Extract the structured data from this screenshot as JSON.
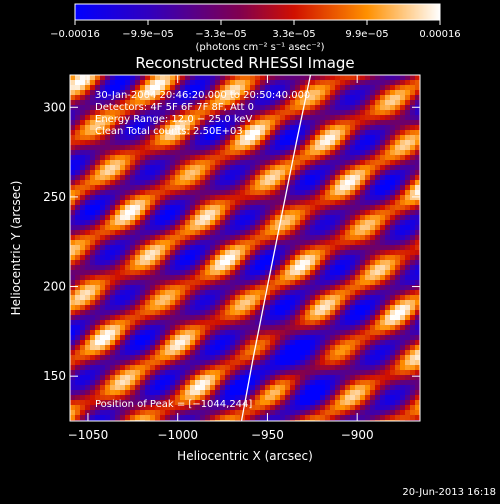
{
  "chart_data": {
    "type": "heatmap",
    "title": "Reconstructed RHESSI Image",
    "xlabel": "Heliocentric X (arcsec)",
    "ylabel": "Heliocentric Y (arcsec)",
    "xlim": [
      -1060,
      -865
    ],
    "ylim": [
      125,
      318
    ],
    "x_ticks": [
      -1050,
      -1000,
      -950,
      -900
    ],
    "y_ticks": [
      150,
      200,
      250,
      300
    ],
    "x_tick_labels": [
      "−1050",
      "−1000",
      "−950",
      "−900"
    ],
    "y_tick_labels": [
      "150",
      "200",
      "250",
      "300"
    ],
    "colorbar": {
      "range": [
        -0.00016,
        0.00016
      ],
      "tick_labels": [
        "−0.00016",
        "−9.9e−05",
        "−3.3e−05",
        "3.3e−05",
        "9.9e−05",
        "0.00016"
      ],
      "unit_label": "(photons cm⁻² s⁻¹ asec⁻²)"
    },
    "info_lines": [
      "30-Jan-2004 20:46:20.000 to 20:50:40.000",
      "Detectors: 4F 5F 6F 7F 8F, Att 0",
      "Energy Range: 12.0 − 25.0 keV",
      "Clean    Total counts: 2.50E+03"
    ],
    "peak_label": "Position of Peak = [−1044,244]",
    "peak": [
      -1044,
      244
    ],
    "limb_curve": [
      [
        -965,
        122
      ],
      [
        -958,
        160
      ],
      [
        -950,
        200
      ],
      [
        -942,
        240
      ],
      [
        -934,
        280
      ],
      [
        -926,
        318
      ]
    ],
    "stamp": "20-Jun-2013 16:18",
    "colormap": [
      "#0000ff",
      "#5a007a",
      "#a00000",
      "#ff3000",
      "#ffb000",
      "#ffffff"
    ]
  }
}
